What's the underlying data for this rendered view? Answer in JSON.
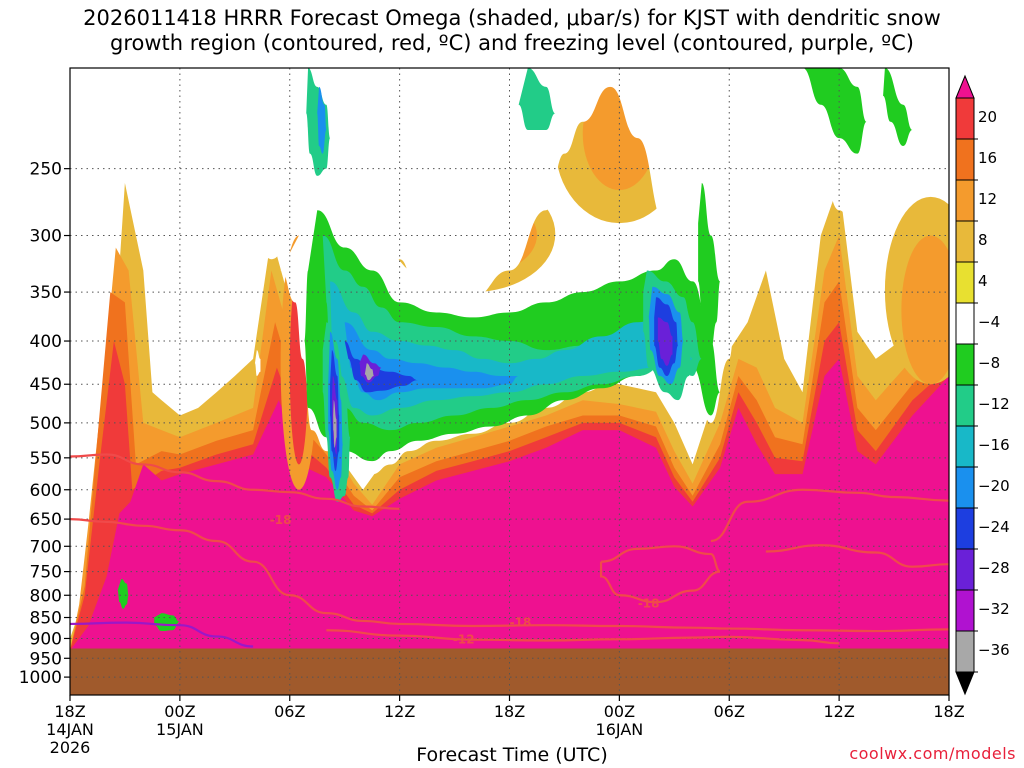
{
  "title_line1": "2026011418 HRRR Forecast Omega (shaded, μbar/s) for KJST with dendritic snow",
  "title_line2": "growth region (contoured, red, ºC) and freezing level (contoured, purple, ºC)",
  "credit": "coolwx.com/models",
  "chart_data": {
    "type": "heatmap",
    "xlabel": "Forecast Time (UTC)",
    "ylabel": "",
    "y_scale": "log-pressure",
    "y_reversed": true,
    "ylim": [
      1050,
      190
    ],
    "x_range": [
      "18Z 14JAN 2026",
      "18Z 16JAN 2026"
    ],
    "x_ticks": [
      {
        "hour": 0,
        "label": "18Z",
        "sub": "14JAN",
        "sub2": "2026"
      },
      {
        "hour": 6,
        "label": "00Z",
        "sub": "15JAN",
        "sub2": ""
      },
      {
        "hour": 12,
        "label": "06Z",
        "sub": "",
        "sub2": ""
      },
      {
        "hour": 18,
        "label": "12Z",
        "sub": "",
        "sub2": ""
      },
      {
        "hour": 24,
        "label": "18Z",
        "sub": "",
        "sub2": ""
      },
      {
        "hour": 30,
        "label": "00Z",
        "sub": "16JAN",
        "sub2": ""
      },
      {
        "hour": 36,
        "label": "06Z",
        "sub": "",
        "sub2": ""
      },
      {
        "hour": 42,
        "label": "12Z",
        "sub": "",
        "sub2": ""
      },
      {
        "hour": 48,
        "label": "18Z",
        "sub": "",
        "sub2": ""
      }
    ],
    "y_ticks": [
      250,
      300,
      350,
      400,
      450,
      500,
      550,
      600,
      650,
      700,
      750,
      800,
      850,
      900,
      950,
      1000
    ],
    "grid": true,
    "colorbar": {
      "labels": [
        "20",
        "16",
        "12",
        "8",
        "4",
        "−4",
        "−8",
        "−12",
        "−16",
        "−20",
        "−24",
        "−28",
        "−32",
        "−36"
      ],
      "levels": [
        24,
        20,
        16,
        12,
        8,
        4,
        -4,
        -8,
        -12,
        -16,
        -20,
        -24,
        -28,
        -32,
        -36,
        -40
      ],
      "colors": [
        "#ee1190",
        "#f03a3a",
        "#f0721e",
        "#f49b2d",
        "#e8b93a",
        "#e8e030",
        "#ffffff",
        "#20cc20",
        "#22cc88",
        "#18b8c8",
        "#1a90ee",
        "#1d3ee0",
        "#6a20d8",
        "#b012d0",
        "#a8a8a8",
        "#000000"
      ]
    },
    "surface_color": "#a05a2c",
    "surface_pressure": 925,
    "contour_labels": [
      {
        "hour": 11.5,
        "p": 652,
        "text": "-18"
      },
      {
        "hour": 24.6,
        "p": 862,
        "text": "-18"
      },
      {
        "hour": 31.6,
        "p": 818,
        "text": "-18"
      },
      {
        "hour": 21.5,
        "p": 902,
        "text": "-12"
      }
    ],
    "series": [
      {
        "name": "dgz_lower",
        "color": "#f04a4a",
        "type": "contour",
        "points": [
          [
            0,
            548
          ],
          [
            2,
            545
          ],
          [
            4,
            560
          ],
          [
            6,
            572
          ],
          [
            8,
            586
          ],
          [
            10,
            600
          ],
          [
            12,
            604
          ],
          [
            14,
            615
          ],
          [
            16,
            628
          ],
          [
            18,
            632
          ]
        ]
      },
      {
        "name": "dgz_upper",
        "color": "#f04a4a",
        "type": "contour",
        "points": [
          [
            0,
            650
          ],
          [
            2,
            655
          ],
          [
            4,
            662
          ],
          [
            6,
            670
          ],
          [
            8,
            690
          ],
          [
            10,
            730
          ],
          [
            12,
            800
          ],
          [
            14,
            840
          ],
          [
            16,
            858
          ],
          [
            18,
            865
          ],
          [
            22,
            870
          ],
          [
            26,
            868
          ],
          [
            30,
            870
          ],
          [
            34,
            874
          ],
          [
            36,
            876
          ],
          [
            40,
            880
          ],
          [
            44,
            882
          ],
          [
            48,
            878
          ]
        ]
      },
      {
        "name": "dgz_-12_low",
        "color": "#f04a4a",
        "type": "contour",
        "points": [
          [
            14,
            880
          ],
          [
            18,
            893
          ],
          [
            22,
            903
          ],
          [
            26,
            905
          ],
          [
            30,
            902
          ],
          [
            34,
            898
          ],
          [
            36,
            896
          ],
          [
            40,
            904
          ],
          [
            42,
            912
          ]
        ]
      },
      {
        "name": "dgz_closed_1",
        "color": "#f04a4a",
        "type": "contour",
        "points": [
          [
            29,
            730
          ],
          [
            31,
            705
          ],
          [
            33,
            700
          ],
          [
            35,
            715
          ],
          [
            35.5,
            750
          ],
          [
            34,
            790
          ],
          [
            32,
            815
          ],
          [
            30,
            800
          ],
          [
            29,
            760
          ],
          [
            29,
            730
          ]
        ]
      },
      {
        "name": "dgz_upper_right",
        "color": "#f04a4a",
        "type": "contour",
        "points": [
          [
            35,
            690
          ],
          [
            37,
            620
          ],
          [
            40,
            600
          ],
          [
            43,
            605
          ],
          [
            45,
            612
          ],
          [
            48,
            618
          ]
        ]
      },
      {
        "name": "dgz_closed_2",
        "color": "#f04a4a",
        "type": "contour",
        "points": [
          [
            38,
            710
          ],
          [
            41,
            698
          ],
          [
            44,
            712
          ],
          [
            46,
            740
          ],
          [
            48,
            735
          ]
        ]
      },
      {
        "name": "freezing_level",
        "color": "#9a18c8",
        "type": "contour",
        "points": [
          [
            0,
            865
          ],
          [
            3,
            862
          ],
          [
            6,
            868
          ],
          [
            8,
            895
          ],
          [
            10,
            920
          ]
        ]
      }
    ]
  }
}
